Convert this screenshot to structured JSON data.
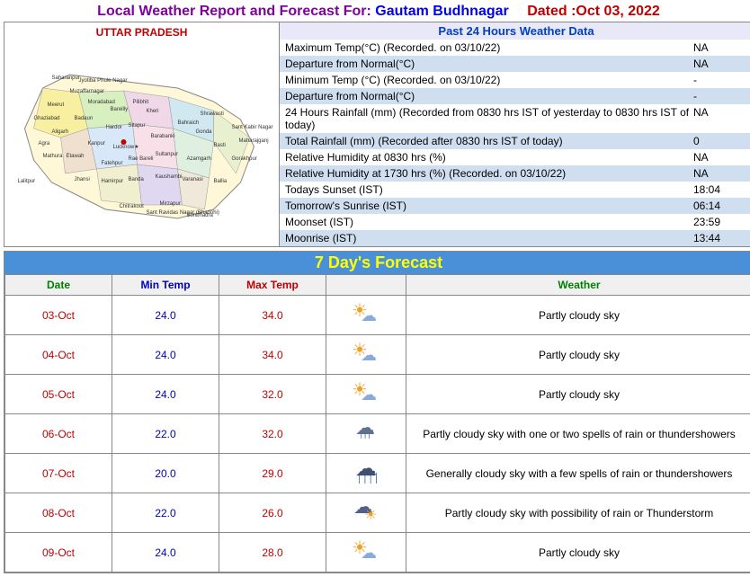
{
  "header": {
    "title": "Local Weather Report and Forecast For:",
    "location": "Gautam Budhnagar",
    "date_label": "Dated :Oct 03, 2022"
  },
  "map": {
    "state_label": "UTTAR PRADESH"
  },
  "past24": {
    "title": "Past 24 Hours Weather Data",
    "rows": [
      {
        "label": "Maximum Temp(°C) (Recorded. on 03/10/22)",
        "value": "NA",
        "alt": false
      },
      {
        "label": "Departure from Normal(°C)",
        "value": "NA",
        "alt": true
      },
      {
        "label": "Minimum Temp (°C) (Recorded. on 03/10/22)",
        "value": "-",
        "alt": false
      },
      {
        "label": "Departure from Normal(°C)",
        "value": "-",
        "alt": true
      },
      {
        "label": "24 Hours Rainfall (mm) (Recorded from 0830 hrs IST of yesterday to 0830 hrs IST of today)",
        "value": "NA",
        "alt": false
      },
      {
        "label": "Total Rainfall (mm) (Recorded after 0830 hrs IST of today)",
        "value": "0",
        "alt": true
      },
      {
        "label": "Relative Humidity at 0830 hrs (%)",
        "value": "NA",
        "alt": false
      },
      {
        "label": "Relative Humidity at 1730 hrs (%) (Recorded. on 03/10/22)",
        "value": "NA",
        "alt": true
      },
      {
        "label": "Todays Sunset (IST)",
        "value": "18:04",
        "alt": false
      },
      {
        "label": "Tomorrow's Sunrise (IST)",
        "value": "06:14",
        "alt": true
      },
      {
        "label": "Moonset (IST)",
        "value": "23:59",
        "alt": false
      },
      {
        "label": "Moonrise (IST)",
        "value": "13:44",
        "alt": true
      }
    ]
  },
  "forecast": {
    "title": "7 Day's Forecast",
    "headers": {
      "date": "Date",
      "min": "Min Temp",
      "max": "Max Temp",
      "weather": "Weather"
    },
    "rows": [
      {
        "date": "03-Oct",
        "min": "24.0",
        "max": "34.0",
        "icon": "partly",
        "weather": "Partly cloudy sky"
      },
      {
        "date": "04-Oct",
        "min": "24.0",
        "max": "34.0",
        "icon": "partly",
        "weather": "Partly cloudy sky"
      },
      {
        "date": "05-Oct",
        "min": "24.0",
        "max": "32.0",
        "icon": "partly",
        "weather": "Partly cloudy sky"
      },
      {
        "date": "06-Oct",
        "min": "22.0",
        "max": "32.0",
        "icon": "rain",
        "weather": "Partly cloudy sky with one or two spells of rain or thundershowers"
      },
      {
        "date": "07-Oct",
        "min": "20.0",
        "max": "29.0",
        "icon": "heavyrain",
        "weather": "Generally cloudy sky with a few spells of rain or thundershowers"
      },
      {
        "date": "08-Oct",
        "min": "22.0",
        "max": "26.0",
        "icon": "thunder",
        "weather": "Partly cloudy sky with possibility of rain or Thunderstorm"
      },
      {
        "date": "09-Oct",
        "min": "24.0",
        "max": "28.0",
        "icon": "partly",
        "weather": "Partly cloudy sky"
      }
    ]
  }
}
